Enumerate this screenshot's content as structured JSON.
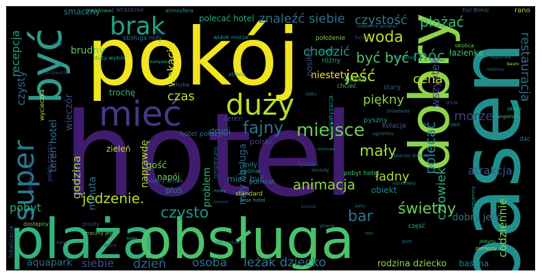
{
  "title": "",
  "words": {
    "hotel": "hotel",
    "pokoj": "pokój",
    "basen": "basen",
    "plaza": "plaża",
    "obsluga": "obsługa",
    "dobry": "dobry",
    "byc": "być",
    "miec": "mieć",
    "super": "super",
    "duzy": "duży",
    "brak": "brak",
    "fajny": "fajny",
    "miejsce": "miejsce",
    "woda": "woda",
    "plazac": "plażać",
    "czystosc": "czystość",
    "znalezc_siebie": "znaleźć siebie",
    "byc_byc": "być być",
    "chodzic": "chodzić",
    "moc": "móc",
    "jesc": "jeść",
    "piekny": "piękny",
    "maly": "mały",
    "animacja": "animacja",
    "ladny": "ładny",
    "restauracja": "restauracja",
    "wszystek": "wszystek",
    "morze": "morze",
    "cena": "cena",
    "polecac": "polecać",
    "atrakcja": "atrakcja",
    "czlowiek": "człowiek",
    "swietny": "świetny",
    "bar": "bar",
    "czysto": "czysto",
    "jedzenie": "jedzenie.",
    "pobyt": "pobyt",
    "osoba": "osoba",
    "lezak_dziecko": "leżak dziecko",
    "dzien": "dzień",
    "siebie": "siebie",
    "aquapark": "aquapark",
    "rodzina_dziecko": "rodzina dziecko",
    "basena": "basena",
    "codziennie": "codziennie",
    "dobry_jesc": "dobry jeść",
    "czas": "czas",
    "recepcja": "recepcja",
    "czysty": "czysty",
    "brudny": "brudny",
    "wakacje": "wakacje",
    "teren_hotel": "teren hotel",
    "wieczor": "wieczór",
    "godzina": "godzina",
    "naprawde": "naprawdę",
    "problem": "problem",
    "mily_obsluga": "miły obsługa",
    "minuta": "minuta",
    "gosc": "gość",
    "niestety": "niestety",
    "troche": "trochę",
    "posilek": "posiłek",
    "polecac_hotel": "polecać hotel",
    "lazienka": "łazienka",
    "hotel_miec": "hotel mieć",
    "polozenie": "położenie",
    "rano": "rano",
    "pyszny": "pyszny",
    "kolacja": "kolacja",
    "mozliwosc": "możliwość",
    "drugi": "drugi",
    "mily": "miły",
    "plus": "plus",
    "polski": "polski",
    "napoj": "napój",
    "obiekt": "obiekt",
    "pobyt_hotel": "pobyt hotel",
    "teren": "teren",
    "dostepny": "dostępny",
    "duzy_ilosc": "duży ilość",
    "hotel_polozyc": "hotel położyć",
    "zielen": "zieleń",
    "duzy_wybor": "duży wybór",
    "obsluga_mily": "obsługa miły",
    "stary": "stary",
    "okolica": "okolica",
    "chciec": "chcieć",
    "blisko": "blisko",
    "dziecko_dorosly": "dziecko dorosły",
    "mozna": "można",
    "rozny": "różny",
    "smaczny": "smaczny",
    "wrazenie": "wrażenie",
    "bez": "bez",
    "atmosfera": "atmosfera",
    "znajdowac": "znajdować",
    "byc_pokoj": "być pokój",
    "rok": "rok",
    "widok": "widok",
    "widok_morze": "widok morze",
    "piekny_widok": "piękny widok",
    "ogrod": "ogród",
    "turcja": "turcja",
    "codziennie_sprzatac": "codziennie sprzątać",
    "siebie_plazac": "siebie plażać",
    "czesc": "część",
    "dac": "dać",
    "drink": "drink",
    "sklep": "sklep",
    "noc": "noc",
    "klimatyzacja": "klimatyzacja",
    "sniadanie": "śniadanie",
    "jedyny": "jedyny",
    "pierwszy": "pierwszy",
    "euro": "euro",
    "prosty": "prosty",
    "wada": "wada",
    "smaczny_jesc": "smaczny jeść",
    "spore": "spore",
    "standard": "standard",
    "nowy": "nowy",
    "tydzien": "tydzień",
    "dorosly": "dorosły",
    "rozmowa": "rozmowa",
    "pomost": "pomost",
    "ogolnie": "ogólnie",
    "miec_byc": "mieć być",
    "sympatyczny": "sympatyczny",
    "wycieczka": "wycieczka",
    "pokoj_czysty": "pokój czysty",
    "chyba": "chyba",
    "strona": "strona",
    "przyjemny": "przyjemny",
    "wspanialy": "wspaniały",
    "rodzinny": "rodzinny",
    "zgubic": "zgubić",
    "bauro": "bauro",
    "kompleks": "kompleks",
    "ogromny": "ogromny",
    "roznorodny": "różnorodny",
    "hotelowy": "hotelowy",
    "jesc_dobry": "jeść dobry",
    "jesc_mozna": "jeść można",
    "pomoc": "pomoc",
    "mozna_jesc": "można jeść",
    "wyzywienie": "wyżywienie",
    "angielski": "angielski",
    "robic": "robić",
    "lokalizacja": "lokalizacja",
    "oczywiscie": "oczywiście",
    "kolejka": "kolejka",
    "rowniez": "również",
    "pogoda": "pogoda",
    "grupa": "grupa",
    "dach": "dach",
    "mieszkac": "mieszkać",
    "mowic": "mówić",
    "rzecz": "rzecz",
    "wydawac": "wydawać",
    "wybrzeze": "wybrzeże",
    "ciepla": "ciepła",
    "lobby": "lobby",
    "brak_hotel": "brak hotel",
    "zjezdzalnia": "zjeżdżalnia",
    "port": "port",
    "glowne": "główne",
    "wynikac": "wynikać",
    "zwykly": "zwykły",
    "remont": "remont",
    "wyjazd": "wyjazd",
    "szybko": "szybko",
    "pokojowy": "pokojowy",
    "dluzej": "dłużej",
    "kurecki": "kurecki",
    "wiedziec": "wiedzieć",
    "mniej": "mniej",
    "maly_jesc": "mały jeść",
    "slodki": "słodki",
    "sjaby": "sjaby",
    "przyjazd": "przyjazd",
    "gr": "gr",
    "odpocznienie": "odpocznienie"
  }
}
